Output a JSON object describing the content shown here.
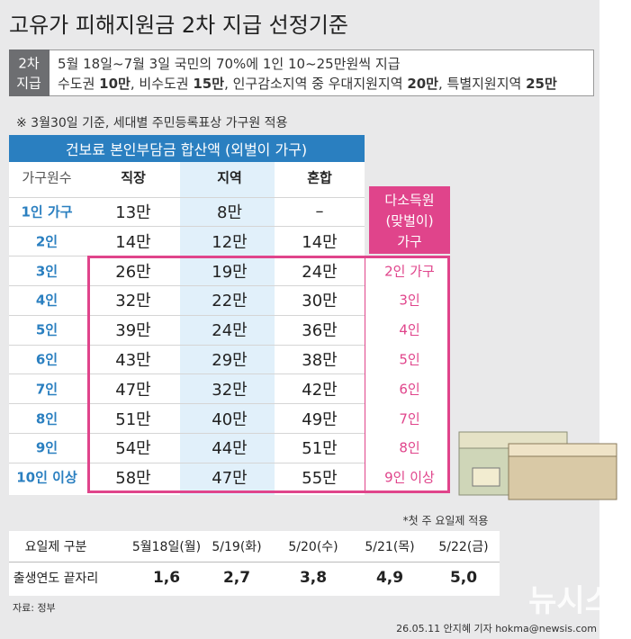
{
  "header": {
    "title": "고유가 피해지원금 2차 지급 선정기준"
  },
  "notice": {
    "label": [
      "2차",
      "지급"
    ],
    "line1": "5월 18일~7월 3일 국민의 70%에 1인 10~25만원씩 지급",
    "line2": [
      {
        "text": "수도권 ",
        "bold": false
      },
      {
        "text": "10만",
        "bold": true
      },
      {
        "text": ", 비수도권 ",
        "bold": false
      },
      {
        "text": "15만",
        "bold": true
      },
      {
        "text": ", 인구감소지역 중 우대지원지역 ",
        "bold": false
      },
      {
        "text": "20만",
        "bold": true
      },
      {
        "text": ", 특별지원지역 ",
        "bold": false
      },
      {
        "text": "25만",
        "bold": true
      }
    ]
  },
  "note": "※ 3월30일 기준, 세대별 주민등록표상 가구원 적용",
  "table": {
    "group_header": "건보료 본인부담금 합산액 (외벌이 가구)",
    "columns": [
      "가구원수",
      "직장",
      "지역",
      "혼합"
    ],
    "rows": [
      [
        "1인 가구",
        "13만",
        "8만",
        "–"
      ],
      [
        "2인",
        "14만",
        "12만",
        "14만"
      ],
      [
        "3인",
        "26만",
        "19만",
        "24만"
      ],
      [
        "4인",
        "32만",
        "22만",
        "30만"
      ],
      [
        "5인",
        "39만",
        "24만",
        "36만"
      ],
      [
        "6인",
        "43만",
        "29만",
        "38만"
      ],
      [
        "7인",
        "47만",
        "32만",
        "42만"
      ],
      [
        "8인",
        "51만",
        "40만",
        "49만"
      ],
      [
        "9인",
        "54만",
        "44만",
        "51만"
      ],
      [
        "10인 이상",
        "58만",
        "47만",
        "55만"
      ]
    ]
  },
  "side": {
    "header": [
      "다소득원",
      "(맞벌이)",
      "가구"
    ],
    "values": [
      "2인 가구",
      "3인",
      "4인",
      "5인",
      "6인",
      "7인",
      "8인",
      "9인 이상"
    ]
  },
  "schedule": {
    "note": "*첫 주 요일제 적용",
    "header": [
      "요일제 구분",
      "5월18일(월)",
      "5/19(화)",
      "5/20(수)",
      "5/21(목)",
      "5/22(금)"
    ],
    "row": [
      "출생연도 끝자리",
      "1,6",
      "2,7",
      "3,8",
      "4,9",
      "5,0"
    ]
  },
  "source": "자료: 정부",
  "credit": "26.05.11 안지혜 기자 hokma@newsis.com",
  "watermark": "뉴시스"
}
